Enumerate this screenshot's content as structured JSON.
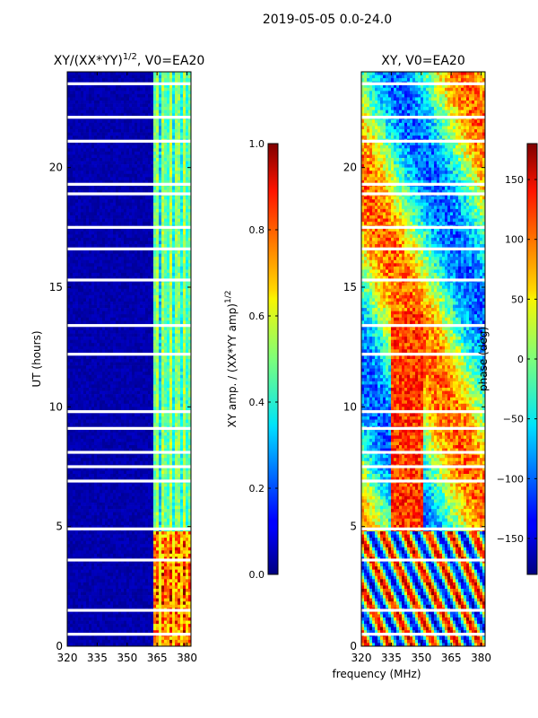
{
  "suptitle": "2019-05-05 0.0-24.0",
  "chart_data": [
    {
      "type": "heatmap",
      "title_main": "XY/(XX*YY)",
      "title_sup": "1/2",
      "title_rest": ", V0=EA20",
      "xlabel": "",
      "ylabel": "UT (hours)",
      "xlim": [
        320,
        382
      ],
      "ylim": [
        0,
        24
      ],
      "xticks": [
        320,
        335,
        350,
        365,
        380
      ],
      "yticks": [
        0,
        5,
        10,
        15,
        20
      ],
      "colorbar": {
        "label_main": "XY amp. / (XX*YY amp)",
        "label_sup": "1/2",
        "range": [
          0.0,
          1.0
        ],
        "ticks": [
          "0.0",
          "0.2",
          "0.4",
          "0.6",
          "0.8",
          "1.0"
        ],
        "colormap": "jet"
      }
    },
    {
      "type": "heatmap",
      "title": "XY, V0=EA20",
      "xlabel": "frequency (MHz)",
      "ylabel": "",
      "xlim": [
        320,
        382
      ],
      "ylim": [
        0,
        24
      ],
      "xticks": [
        320,
        335,
        350,
        365,
        380
      ],
      "yticks": [
        0,
        5,
        10,
        15,
        20
      ],
      "colorbar": {
        "label": "phase (deg)",
        "range": [
          -180,
          180
        ],
        "ticks": [
          "−150",
          "−100",
          "−50",
          "0",
          "50",
          "100",
          "150"
        ],
        "colormap": "jet"
      }
    }
  ]
}
